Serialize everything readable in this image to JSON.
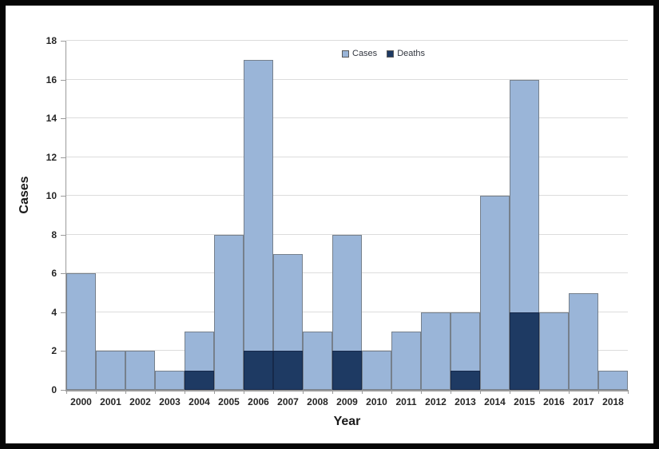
{
  "chart_data": {
    "type": "bar",
    "subtype": "overlay",
    "note": "Deaths bars are drawn in front of Cases bars from the baseline (deaths are a subset of cases), Excel-style with zero gap between categories",
    "title": "",
    "xlabel": "Year",
    "ylabel": "Cases",
    "categories": [
      "2000",
      "2001",
      "2002",
      "2003",
      "2004",
      "2005",
      "2006",
      "2007",
      "2008",
      "2009",
      "2010",
      "2011",
      "2012",
      "2013",
      "2014",
      "2015",
      "2016",
      "2017",
      "2018"
    ],
    "series": [
      {
        "name": "Cases",
        "color": "#9AB5D8",
        "values": [
          6,
          2,
          2,
          1,
          3,
          8,
          17,
          7,
          3,
          8,
          2,
          3,
          4,
          4,
          10,
          16,
          4,
          5,
          1
        ]
      },
      {
        "name": "Deaths",
        "color": "#1E3A63",
        "values": [
          0,
          0,
          0,
          0,
          1,
          0,
          2,
          2,
          0,
          2,
          0,
          0,
          0,
          1,
          0,
          4,
          0,
          0,
          0
        ]
      }
    ],
    "ylim": [
      0,
      18
    ],
    "yticks": [
      0,
      2,
      4,
      6,
      8,
      10,
      12,
      14,
      16,
      18
    ],
    "grid": "horizontal",
    "legend_position": "top-center",
    "colors": {
      "bar_border": "#76808C",
      "deaths_border": "#16294A",
      "gridline": "#DCDCDC",
      "axis_line": "#9B9B9B",
      "tick_text": "#262626",
      "frame_border": "#060606",
      "background": "#FFFFFF"
    }
  }
}
